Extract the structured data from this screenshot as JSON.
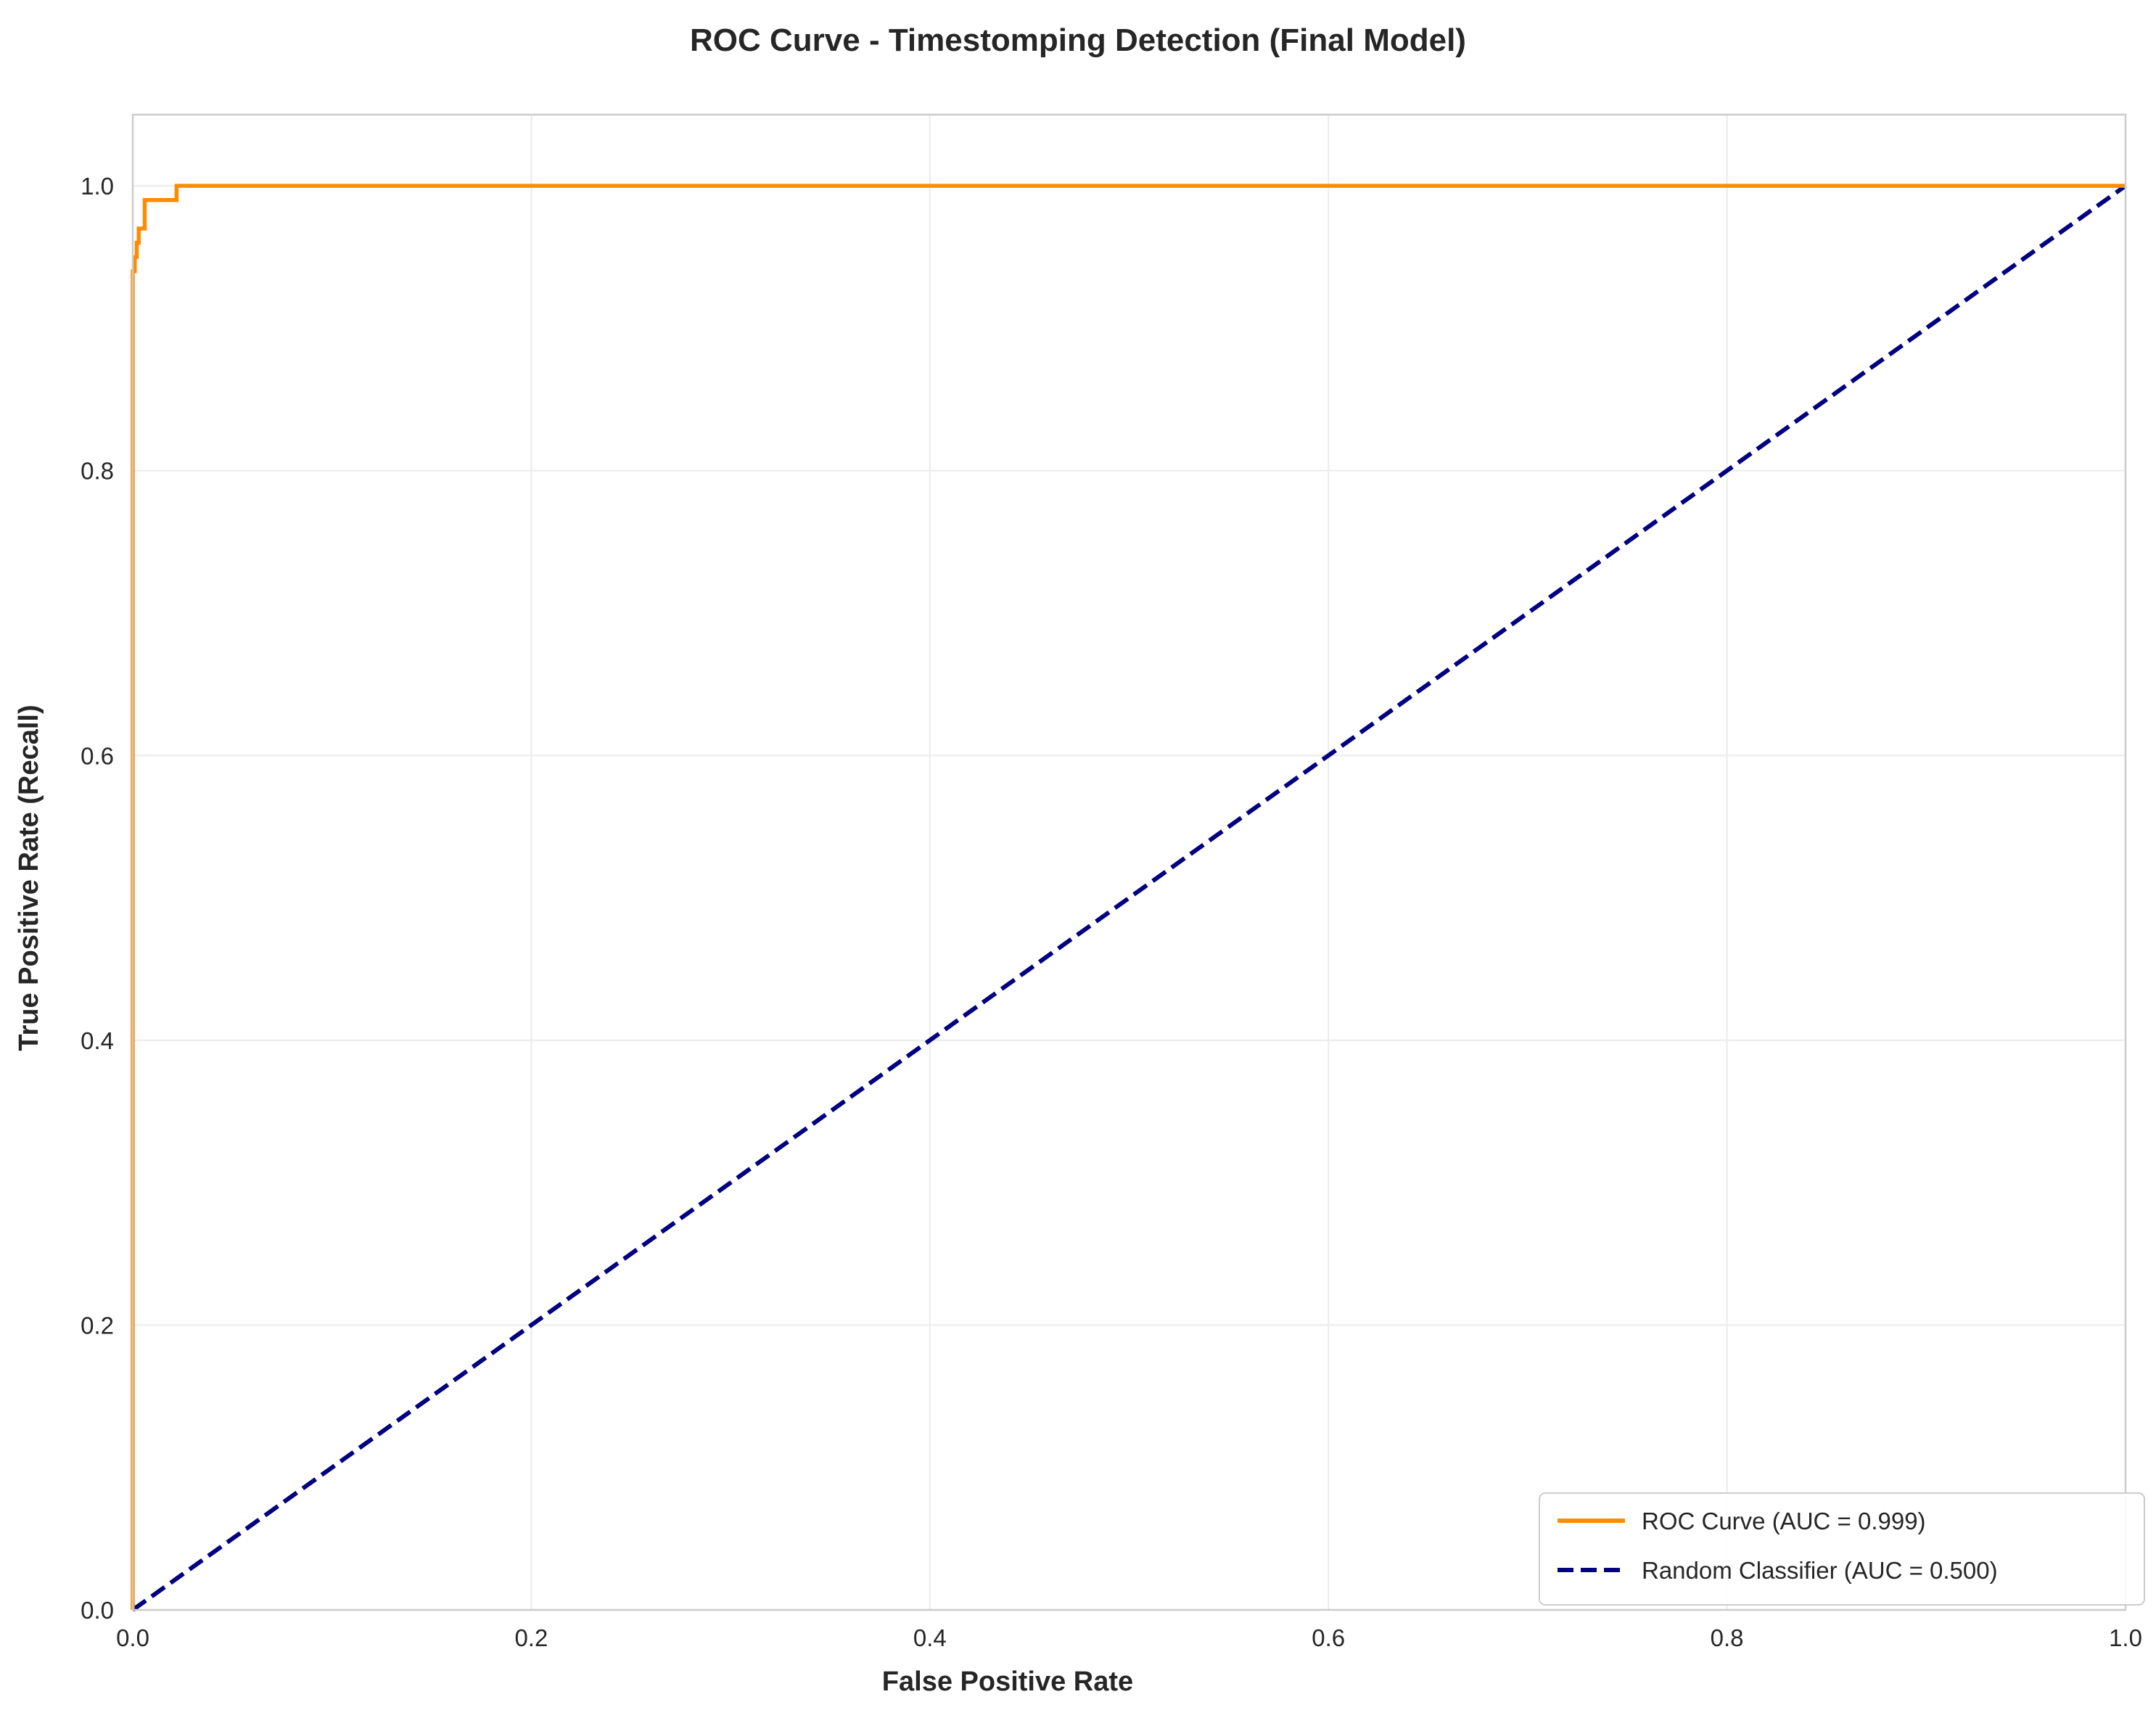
{
  "chart_data": {
    "type": "line",
    "title": "ROC Curve - Timestomping Detection (Final Model)",
    "xlabel": "False Positive Rate",
    "ylabel": "True Positive Rate (Recall)",
    "xlim": [
      0.0,
      1.0
    ],
    "ylim": [
      0.0,
      1.05
    ],
    "xticks": [
      "0.0",
      "0.2",
      "0.4",
      "0.6",
      "0.8",
      "1.0"
    ],
    "yticks": [
      "0.0",
      "0.2",
      "0.4",
      "0.6",
      "0.8",
      "1.0"
    ],
    "grid": true,
    "legend_position": "lower-right",
    "series": [
      {
        "name": "ROC Curve (AUC = 0.999)",
        "color": "#ff8c00",
        "style": "solid",
        "x": [
          0.0,
          0.0,
          0.001,
          0.001,
          0.002,
          0.002,
          0.003,
          0.003,
          0.006,
          0.006,
          0.022,
          0.022,
          1.0
        ],
        "y": [
          0.0,
          0.94,
          0.94,
          0.95,
          0.95,
          0.96,
          0.96,
          0.97,
          0.97,
          0.99,
          0.99,
          1.0,
          1.0
        ]
      },
      {
        "name": "Random Classifier (AUC = 0.500)",
        "color": "#000080",
        "style": "dashed",
        "x": [
          0.0,
          1.0
        ],
        "y": [
          0.0,
          1.0
        ]
      }
    ]
  }
}
